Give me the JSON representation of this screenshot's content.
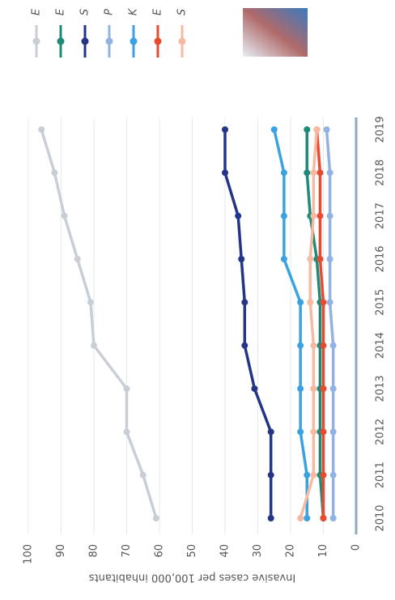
{
  "chart_data": {
    "type": "line",
    "y_label": "Invasive cases per 100,000 inhabitants",
    "categories": [
      "2010",
      "2011",
      "2012",
      "2013",
      "2014",
      "2015",
      "2016",
      "2017",
      "2018",
      "2019"
    ],
    "ylim": [
      0,
      100
    ],
    "yticks": [
      0,
      10,
      20,
      30,
      40,
      50,
      60,
      70,
      80,
      90,
      100
    ],
    "grid": true,
    "series": [
      {
        "name": "E",
        "color": "#c9ced6",
        "values": [
          61,
          65,
          70,
          70,
          80,
          81,
          85,
          89,
          92,
          96
        ]
      },
      {
        "name": "E",
        "color": "#1f8a78",
        "values": [
          10,
          11,
          11,
          11,
          11,
          11,
          12,
          14,
          15,
          15
        ]
      },
      {
        "name": "S",
        "color": "#243588",
        "values": [
          26,
          26,
          26,
          31,
          34,
          34,
          35,
          36,
          40,
          40
        ]
      },
      {
        "name": "P",
        "color": "#92b2e2",
        "values": [
          7,
          7,
          7,
          7,
          7,
          8,
          8,
          8,
          8,
          9
        ]
      },
      {
        "name": "K",
        "color": "#3ba2e2",
        "values": [
          15,
          15,
          17,
          17,
          17,
          17,
          22,
          22,
          22,
          25
        ]
      },
      {
        "name": "E",
        "color": "#e84a30",
        "values": [
          10,
          10,
          10,
          10,
          10,
          10,
          11,
          11,
          11,
          12
        ]
      },
      {
        "name": "S",
        "color": "#f8b9a2",
        "values": [
          17,
          13,
          13,
          13,
          13,
          14,
          14,
          13,
          13,
          12
        ]
      }
    ]
  }
}
